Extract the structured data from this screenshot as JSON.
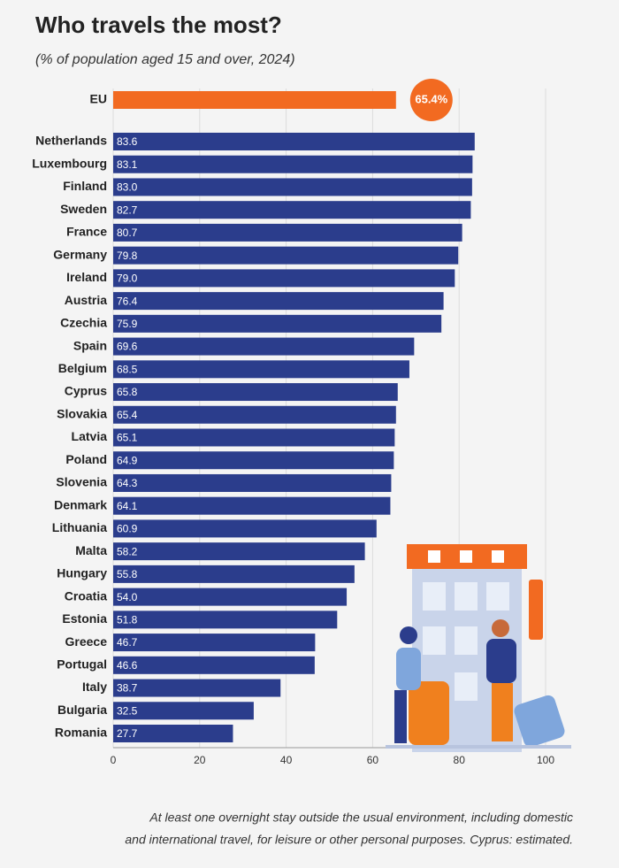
{
  "chart_data": {
    "type": "bar",
    "title": "Who travels the most?",
    "subtitle": "(% of population aged 15 and over, 2024)",
    "highlight": {
      "category": "EU",
      "value": 65.4,
      "value_label": "65.4%",
      "color": "#f26a21"
    },
    "categories": [
      "Netherlands",
      "Luxembourg",
      "Finland",
      "Sweden",
      "France",
      "Germany",
      "Ireland",
      "Austria",
      "Czechia",
      "Spain",
      "Belgium",
      "Cyprus",
      "Slovakia",
      "Latvia",
      "Poland",
      "Slovenia",
      "Denmark",
      "Lithuania",
      "Malta",
      "Hungary",
      "Croatia",
      "Estonia",
      "Greece",
      "Portugal",
      "Italy",
      "Bulgaria",
      "Romania"
    ],
    "values": [
      83.6,
      83.1,
      83.0,
      82.7,
      80.7,
      79.8,
      79.0,
      76.4,
      75.9,
      69.6,
      68.5,
      65.8,
      65.4,
      65.1,
      64.9,
      64.3,
      64.1,
      60.9,
      58.2,
      55.8,
      54.0,
      51.8,
      46.7,
      46.6,
      38.7,
      32.5,
      27.7
    ],
    "value_labels": [
      "83.6",
      "83.1",
      "83.0",
      "82.7",
      "80.7",
      "79.8",
      "79.0",
      "76.4",
      "75.9",
      "69.6",
      "68.5",
      "65.8",
      "65.4",
      "65.1",
      "64.9",
      "64.3",
      "64.1",
      "60.9",
      "58.2",
      "55.8",
      "54.0",
      "51.8",
      "46.7",
      "46.6",
      "38.7",
      "32.5",
      "27.7"
    ],
    "color": "#2b3d8c",
    "xlim": [
      0,
      100
    ],
    "xticks": [
      0,
      20,
      40,
      60,
      80,
      100
    ],
    "grid": true,
    "note": [
      "At least one overnight stay outside the usual environment, including domestic",
      "and international travel, for leisure or other personal purposes. Cyprus: estimated."
    ]
  }
}
